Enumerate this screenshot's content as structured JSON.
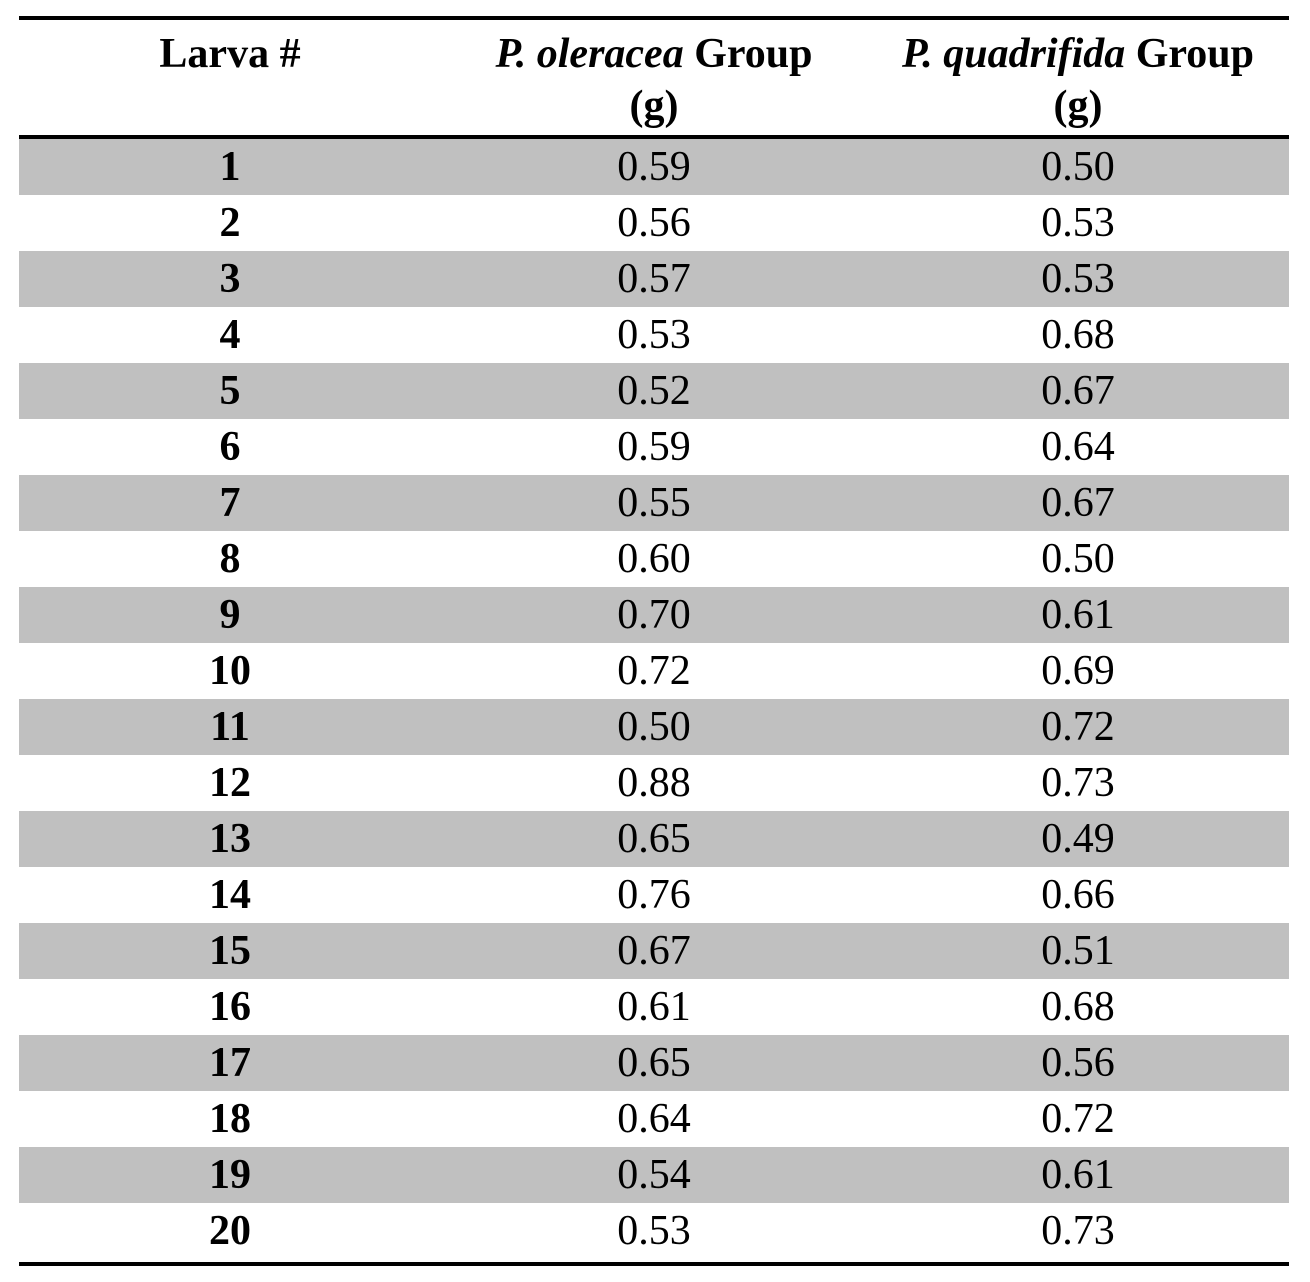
{
  "table": {
    "headers": {
      "col1": "Larva #",
      "col2_species": "P. oleracea",
      "col2_suffix": " Group",
      "col2_unit": "(g)",
      "col3_species": "P. quadrifida",
      "col3_suffix": " Group",
      "col3_unit": "(g)"
    },
    "rows": [
      {
        "larva": "1",
        "oleracea": "0.59",
        "quadrifida": "0.50"
      },
      {
        "larva": "2",
        "oleracea": "0.56",
        "quadrifida": "0.53"
      },
      {
        "larva": "3",
        "oleracea": "0.57",
        "quadrifida": "0.53"
      },
      {
        "larva": "4",
        "oleracea": "0.53",
        "quadrifida": "0.68"
      },
      {
        "larva": "5",
        "oleracea": "0.52",
        "quadrifida": "0.67"
      },
      {
        "larva": "6",
        "oleracea": "0.59",
        "quadrifida": "0.64"
      },
      {
        "larva": "7",
        "oleracea": "0.55",
        "quadrifida": "0.67"
      },
      {
        "larva": "8",
        "oleracea": "0.60",
        "quadrifida": "0.50"
      },
      {
        "larva": "9",
        "oleracea": "0.70",
        "quadrifida": "0.61"
      },
      {
        "larva": "10",
        "oleracea": "0.72",
        "quadrifida": "0.69"
      },
      {
        "larva": "11",
        "oleracea": "0.50",
        "quadrifida": "0.72"
      },
      {
        "larva": "12",
        "oleracea": "0.88",
        "quadrifida": "0.73"
      },
      {
        "larva": "13",
        "oleracea": "0.65",
        "quadrifida": "0.49"
      },
      {
        "larva": "14",
        "oleracea": "0.76",
        "quadrifida": "0.66"
      },
      {
        "larva": "15",
        "oleracea": "0.67",
        "quadrifida": "0.51"
      },
      {
        "larva": "16",
        "oleracea": "0.61",
        "quadrifida": "0.68"
      },
      {
        "larva": "17",
        "oleracea": "0.65",
        "quadrifida": "0.56"
      },
      {
        "larva": "18",
        "oleracea": "0.64",
        "quadrifida": "0.72"
      },
      {
        "larva": "19",
        "oleracea": "0.54",
        "quadrifida": "0.61"
      },
      {
        "larva": "20",
        "oleracea": "0.53",
        "quadrifida": "0.73"
      }
    ]
  },
  "colors": {
    "shaded_row": "#c0c0c0",
    "rule": "#000000"
  }
}
